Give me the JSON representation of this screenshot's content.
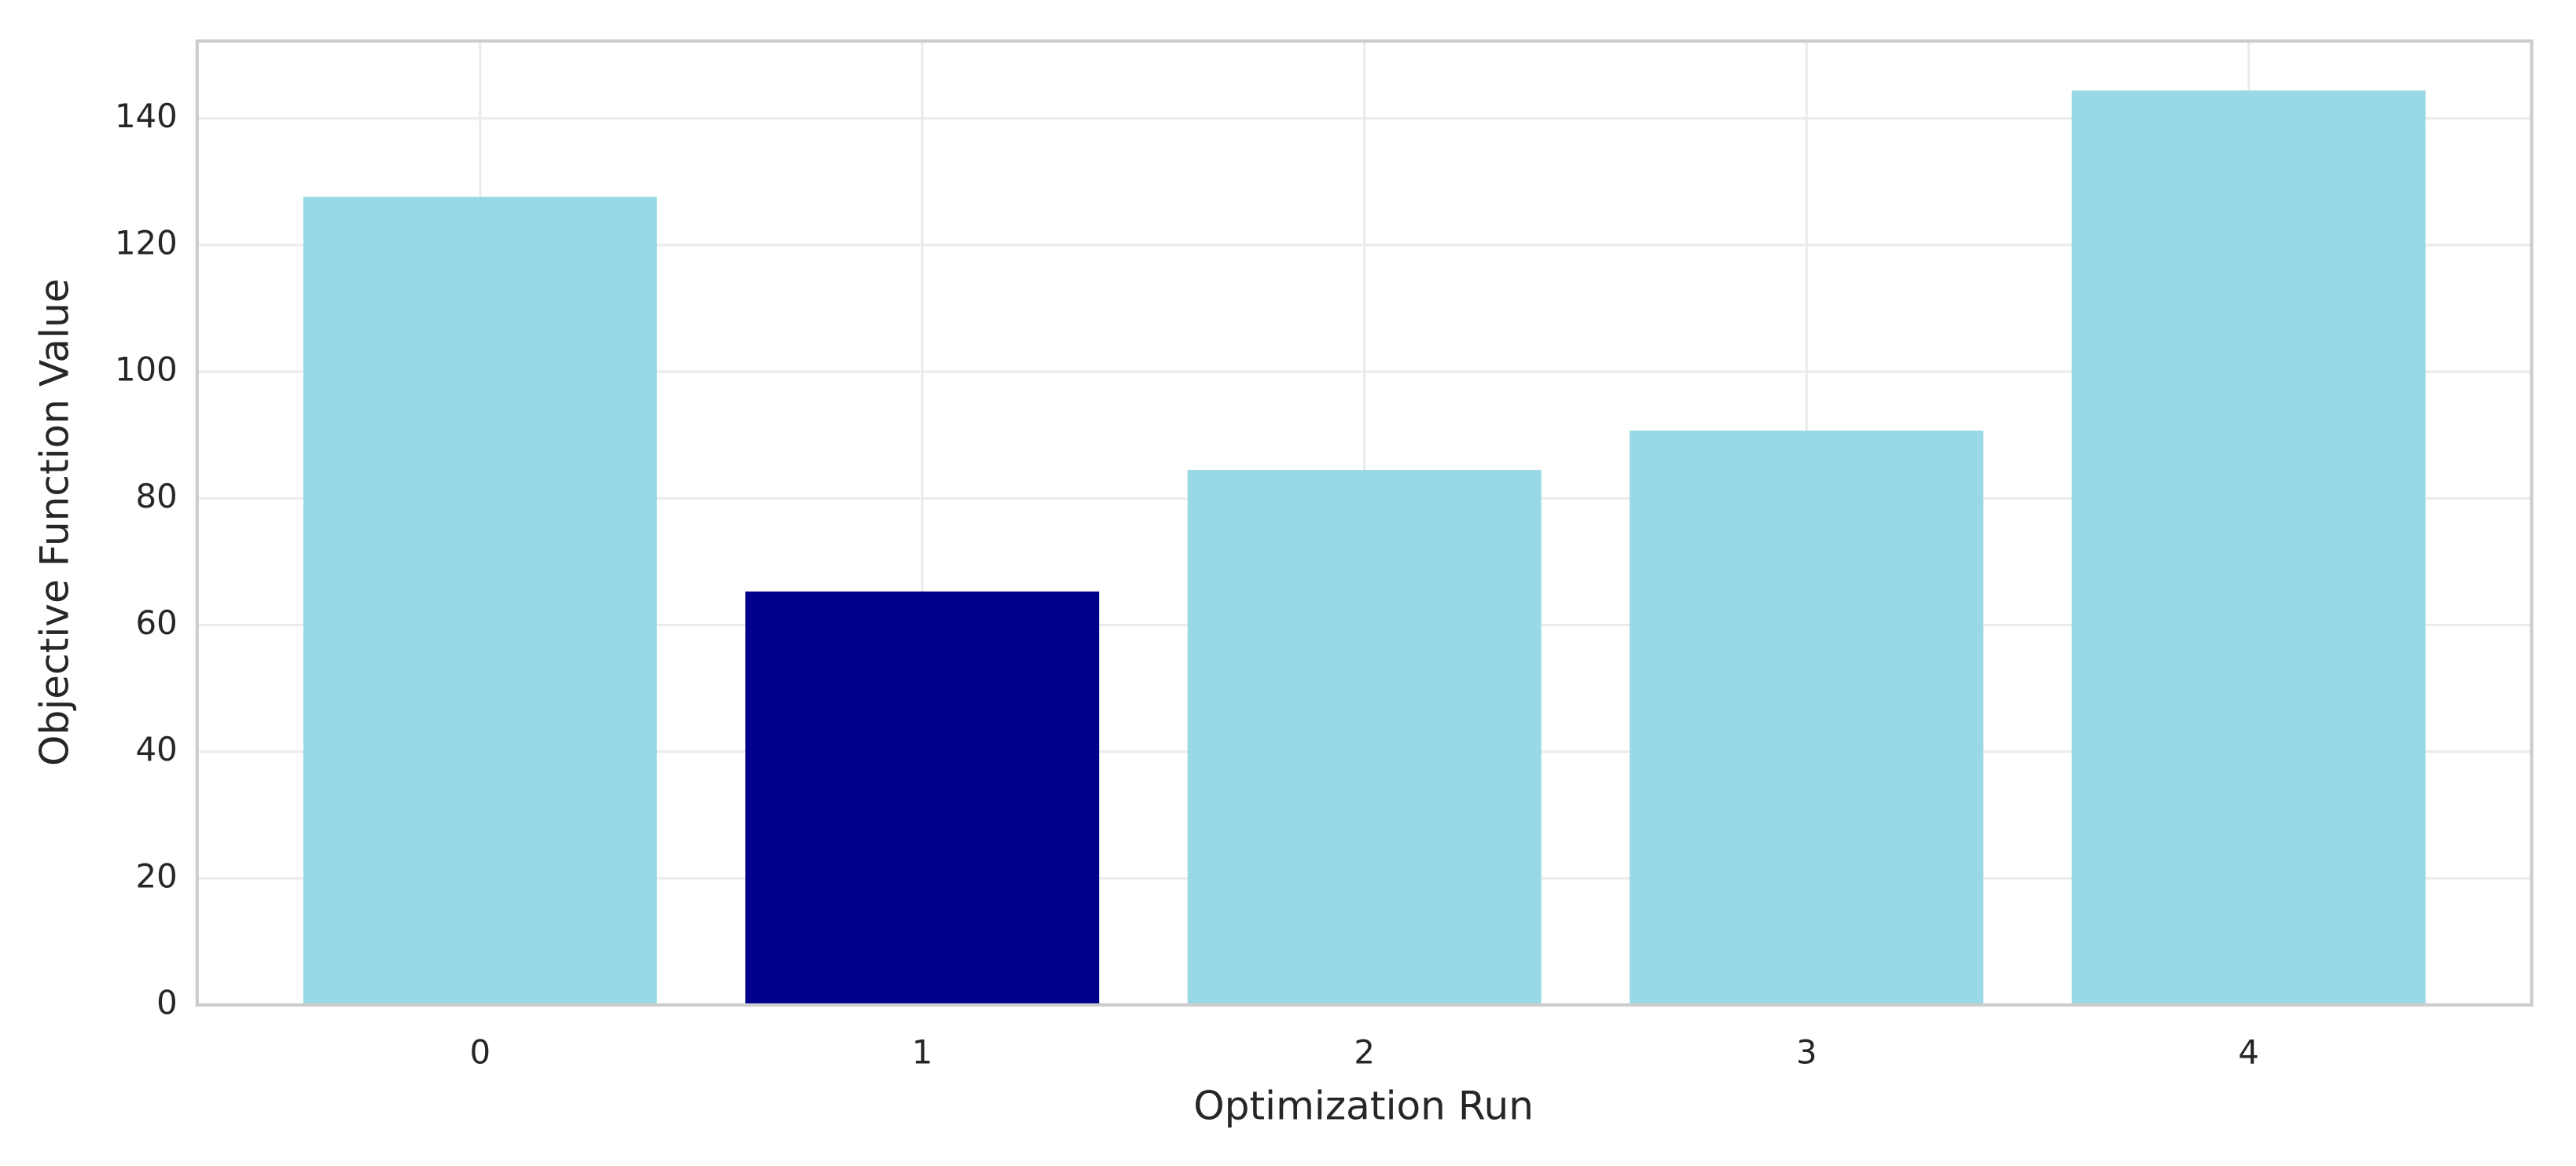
{
  "chart_data": {
    "type": "bar",
    "x_label": "Optimization Run",
    "y_label": "Objective Function Value",
    "categories": [
      "0",
      "1",
      "2",
      "3",
      "4"
    ],
    "values": [
      127.6,
      65.3,
      84.5,
      90.7,
      144.4
    ],
    "colors": [
      "#99d9e5",
      "#00008b",
      "#99d9e5",
      "#99d9e5",
      "#99d9e5"
    ],
    "ylim": [
      0,
      152.2
    ],
    "yticks": [
      0,
      20,
      40,
      60,
      80,
      100,
      120,
      140
    ],
    "grid": true
  }
}
